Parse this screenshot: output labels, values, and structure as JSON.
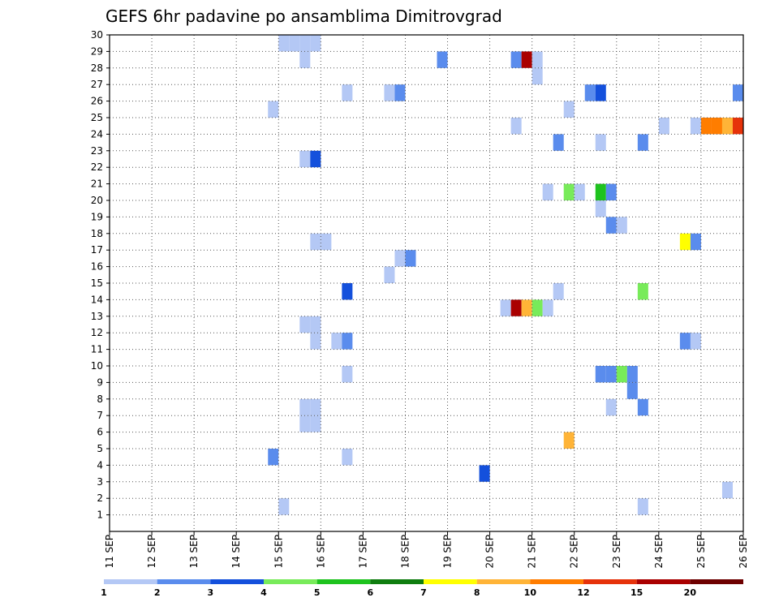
{
  "chart_data": {
    "type": "heatmap",
    "title": "GEFS 6hr padavine po ansamblima Dimitrovgrad",
    "xlabel": "",
    "ylabel": "",
    "x_ticks": [
      "11 SEP",
      "12 SEP",
      "13 SEP",
      "14 SEP",
      "15 SEP",
      "16 SEP",
      "17 SEP",
      "18 SEP",
      "19 SEP",
      "20 SEP",
      "21 SEP",
      "22 SEP",
      "23 SEP",
      "24 SEP",
      "25 SEP",
      "26 SEP"
    ],
    "y_ticks": [
      "1",
      "2",
      "3",
      "4",
      "5",
      "6",
      "7",
      "8",
      "9",
      "10",
      "11",
      "12",
      "13",
      "14",
      "15",
      "16",
      "17",
      "18",
      "19",
      "20",
      "21",
      "22",
      "23",
      "24",
      "25",
      "26",
      "27",
      "28",
      "29",
      "30"
    ],
    "x_range": [
      0,
      60
    ],
    "y_range": [
      0,
      30
    ],
    "grid": true,
    "legend_position": "bottom",
    "legend_bins": [
      {
        "color": "#b4c8f5"
      },
      {
        "color": "#5a8ced"
      },
      {
        "color": "#1450dc"
      },
      {
        "color": "#78eb5a"
      },
      {
        "color": "#1ec31e"
      },
      {
        "color": "#0f7d0f"
      },
      {
        "color": "#ffff00"
      },
      {
        "color": "#ffb437"
      },
      {
        "color": "#ff7d00"
      },
      {
        "color": "#e6320a"
      },
      {
        "color": "#aa0000"
      },
      {
        "color": "#6e0000"
      }
    ],
    "legend_labels": [
      "1",
      "2",
      "3",
      "4",
      "5",
      "6",
      "7",
      "8",
      "10",
      "12",
      "15",
      "20"
    ],
    "cells": [
      {
        "step": 16,
        "member": 29,
        "lev": 1
      },
      {
        "step": 17,
        "member": 29,
        "lev": 1
      },
      {
        "step": 18,
        "member": 29,
        "lev": 1
      },
      {
        "step": 19,
        "member": 29,
        "lev": 1
      },
      {
        "step": 18,
        "member": 28,
        "lev": 1
      },
      {
        "step": 31,
        "member": 28,
        "lev": 2
      },
      {
        "step": 38,
        "member": 28,
        "lev": 2
      },
      {
        "step": 39,
        "member": 28,
        "lev": 11
      },
      {
        "step": 40,
        "member": 28,
        "lev": 1
      },
      {
        "step": 40,
        "member": 27,
        "lev": 1
      },
      {
        "step": 22,
        "member": 26,
        "lev": 1
      },
      {
        "step": 26,
        "member": 26,
        "lev": 1
      },
      {
        "step": 27,
        "member": 26,
        "lev": 2
      },
      {
        "step": 45,
        "member": 26,
        "lev": 2
      },
      {
        "step": 46,
        "member": 26,
        "lev": 3
      },
      {
        "step": 59,
        "member": 26,
        "lev": 2
      },
      {
        "step": 15,
        "member": 25,
        "lev": 1
      },
      {
        "step": 43,
        "member": 25,
        "lev": 1
      },
      {
        "step": 38,
        "member": 24,
        "lev": 1
      },
      {
        "step": 52,
        "member": 24,
        "lev": 1
      },
      {
        "step": 55,
        "member": 24,
        "lev": 1
      },
      {
        "step": 56,
        "member": 24,
        "lev": 9
      },
      {
        "step": 57,
        "member": 24,
        "lev": 9
      },
      {
        "step": 58,
        "member": 24,
        "lev": 8
      },
      {
        "step": 59,
        "member": 24,
        "lev": 10
      },
      {
        "step": 42,
        "member": 23,
        "lev": 2
      },
      {
        "step": 46,
        "member": 23,
        "lev": 1
      },
      {
        "step": 50,
        "member": 23,
        "lev": 2
      },
      {
        "step": 18,
        "member": 22,
        "lev": 1
      },
      {
        "step": 19,
        "member": 22,
        "lev": 3
      },
      {
        "step": 41,
        "member": 20,
        "lev": 1
      },
      {
        "step": 43,
        "member": 20,
        "lev": 4
      },
      {
        "step": 44,
        "member": 20,
        "lev": 1
      },
      {
        "step": 46,
        "member": 20,
        "lev": 5
      },
      {
        "step": 47,
        "member": 20,
        "lev": 2
      },
      {
        "step": 46,
        "member": 19,
        "lev": 1
      },
      {
        "step": 47,
        "member": 18,
        "lev": 2
      },
      {
        "step": 48,
        "member": 18,
        "lev": 1
      },
      {
        "step": 19,
        "member": 17,
        "lev": 1
      },
      {
        "step": 20,
        "member": 17,
        "lev": 1
      },
      {
        "step": 54,
        "member": 17,
        "lev": 7
      },
      {
        "step": 55,
        "member": 17,
        "lev": 2
      },
      {
        "step": 27,
        "member": 16,
        "lev": 1
      },
      {
        "step": 28,
        "member": 16,
        "lev": 2
      },
      {
        "step": 26,
        "member": 15,
        "lev": 1
      },
      {
        "step": 22,
        "member": 14,
        "lev": 3
      },
      {
        "step": 42,
        "member": 14,
        "lev": 1
      },
      {
        "step": 50,
        "member": 14,
        "lev": 4
      },
      {
        "step": 37,
        "member": 13,
        "lev": 1
      },
      {
        "step": 38,
        "member": 13,
        "lev": 11
      },
      {
        "step": 39,
        "member": 13,
        "lev": 8
      },
      {
        "step": 40,
        "member": 13,
        "lev": 4
      },
      {
        "step": 41,
        "member": 13,
        "lev": 1
      },
      {
        "step": 18,
        "member": 12,
        "lev": 1
      },
      {
        "step": 19,
        "member": 12,
        "lev": 1
      },
      {
        "step": 19,
        "member": 11,
        "lev": 1
      },
      {
        "step": 21,
        "member": 11,
        "lev": 1
      },
      {
        "step": 22,
        "member": 11,
        "lev": 2
      },
      {
        "step": 54,
        "member": 11,
        "lev": 2
      },
      {
        "step": 55,
        "member": 11,
        "lev": 1
      },
      {
        "step": 22,
        "member": 9,
        "lev": 1
      },
      {
        "step": 46,
        "member": 9,
        "lev": 2
      },
      {
        "step": 47,
        "member": 9,
        "lev": 2
      },
      {
        "step": 48,
        "member": 9,
        "lev": 4
      },
      {
        "step": 49,
        "member": 9,
        "lev": 2
      },
      {
        "step": 49,
        "member": 8,
        "lev": 2
      },
      {
        "step": 18,
        "member": 7,
        "lev": 1
      },
      {
        "step": 19,
        "member": 7,
        "lev": 1
      },
      {
        "step": 47,
        "member": 7,
        "lev": 1
      },
      {
        "step": 50,
        "member": 7,
        "lev": 2
      },
      {
        "step": 18,
        "member": 6,
        "lev": 1
      },
      {
        "step": 19,
        "member": 6,
        "lev": 1
      },
      {
        "step": 43,
        "member": 5,
        "lev": 8
      },
      {
        "step": 15,
        "member": 4,
        "lev": 2
      },
      {
        "step": 22,
        "member": 4,
        "lev": 1
      },
      {
        "step": 35,
        "member": 3,
        "lev": 3
      },
      {
        "step": 58,
        "member": 2,
        "lev": 1
      },
      {
        "step": 16,
        "member": 1,
        "lev": 1
      },
      {
        "step": 50,
        "member": 1,
        "lev": 1
      }
    ]
  }
}
